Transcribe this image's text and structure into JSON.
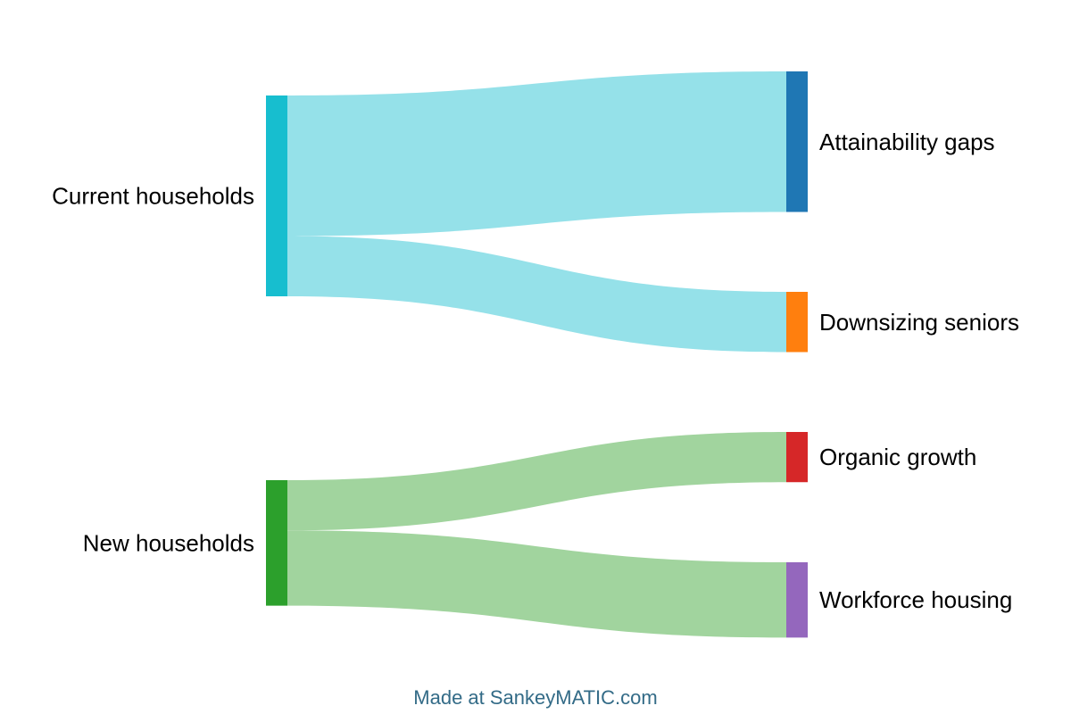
{
  "sankey": {
    "nodes": [
      {
        "id": "current",
        "label": "Current households",
        "color": "#17becf"
      },
      {
        "id": "new",
        "label": "New households",
        "color": "#2ca02c"
      },
      {
        "id": "attain",
        "label": "Attainability gaps",
        "color": "#1f77b4"
      },
      {
        "id": "downsize",
        "label": "Downsizing seniors",
        "color": "#ff7f0e"
      },
      {
        "id": "organic",
        "label": "Organic growth",
        "color": "#d62728"
      },
      {
        "id": "workforce",
        "label": "Workforce housing",
        "color": "#9467bd"
      }
    ],
    "links": [
      {
        "source": "current",
        "target": "attain",
        "value": 70,
        "color": "#95e1e9"
      },
      {
        "source": "current",
        "target": "downsize",
        "value": 30,
        "color": "#95e1e9"
      },
      {
        "source": "new",
        "target": "organic",
        "value": 25,
        "color": "#a1d49e"
      },
      {
        "source": "new",
        "target": "workforce",
        "value": 37.5,
        "color": "#a1d49e"
      }
    ]
  },
  "footer": {
    "credit": "Made at SankeyMATIC.com",
    "credit_color": "#336b87"
  }
}
